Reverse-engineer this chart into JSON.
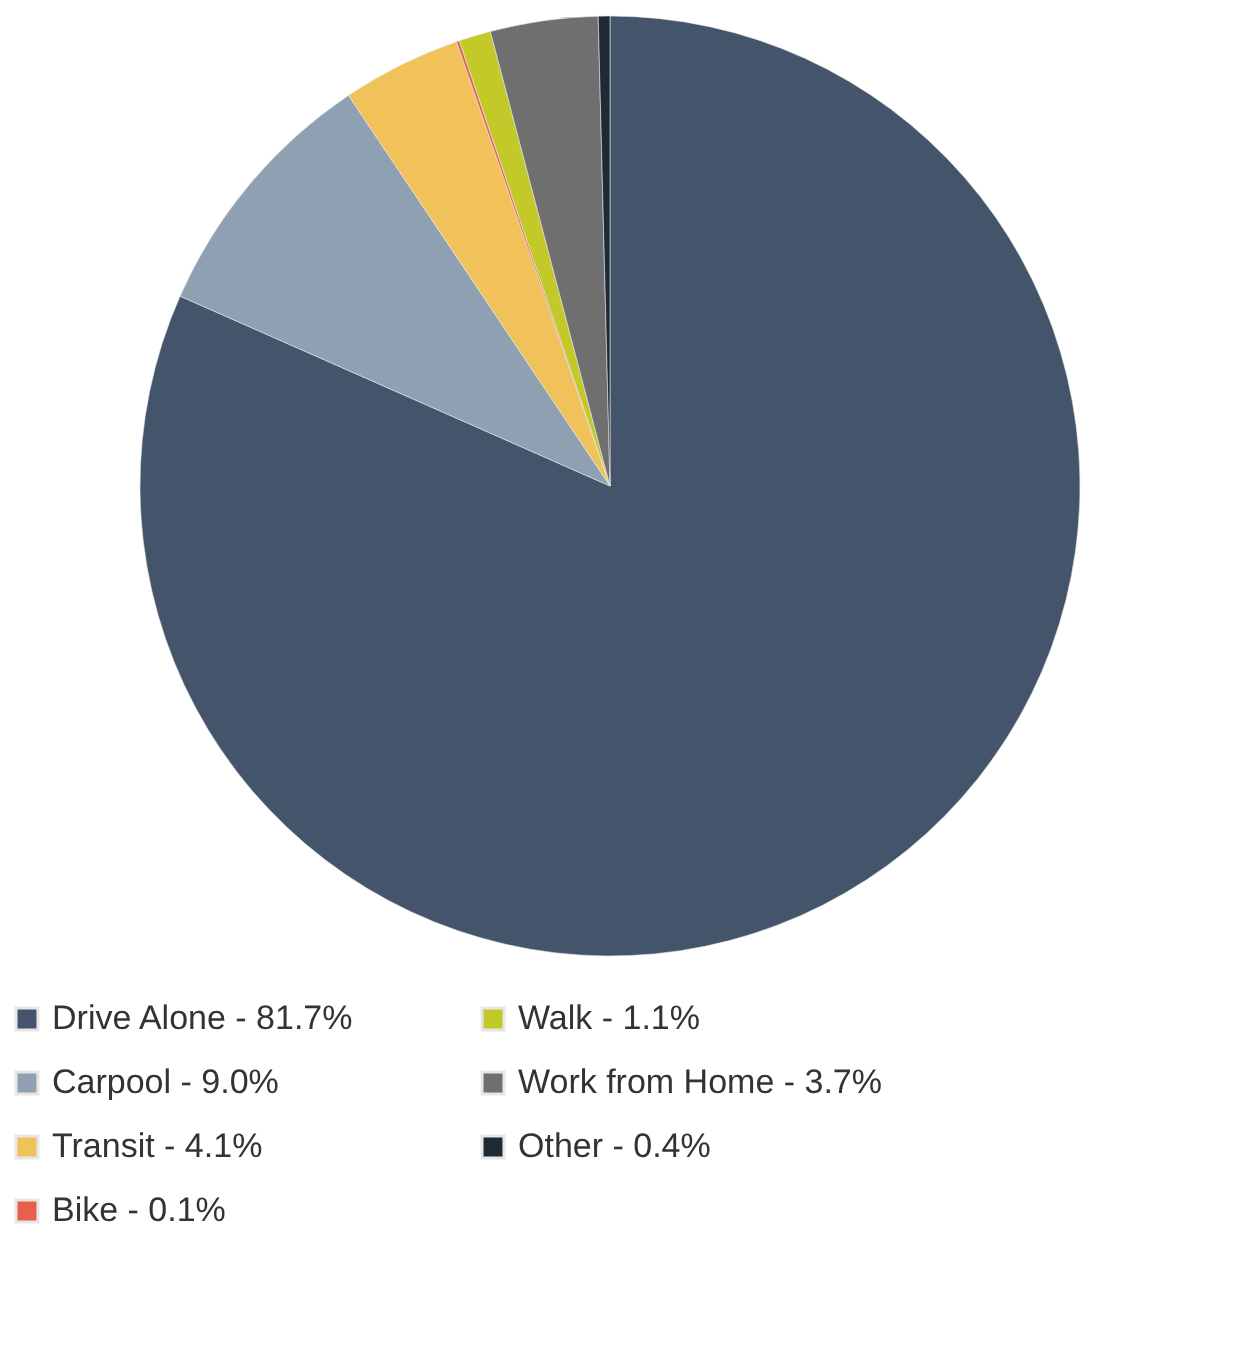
{
  "chart_data": {
    "type": "pie",
    "categories": [
      "Drive Alone - 81.7%",
      "Carpool - 9.0%",
      "Transit - 4.1%",
      "Bike - 0.1%",
      "Walk - 1.1%",
      "Work from Home - 3.7%",
      "Other - 0.4%"
    ],
    "values": [
      81.7,
      9.0,
      4.1,
      0.1,
      1.1,
      3.7,
      0.4
    ],
    "colors": [
      "#44546a",
      "#8fa0b3",
      "#f2c25a",
      "#e8604c",
      "#c4c92a",
      "#6f6f6f",
      "#1f2a36"
    ],
    "legend": "bottom"
  }
}
